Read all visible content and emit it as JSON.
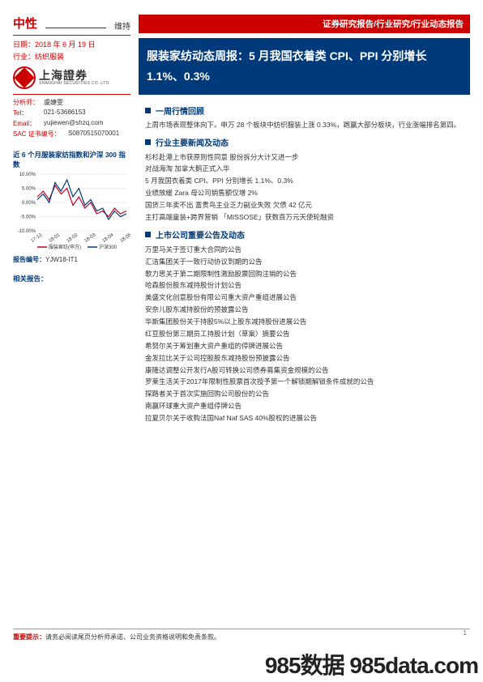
{
  "sidebar": {
    "rating": "中性",
    "maintain": "维持",
    "date_label": "日期：",
    "date": "2018 年 6 月 19 日",
    "industry_label": "行业：",
    "industry": "纺织服装",
    "logo_cn": "上海證券",
    "logo_en": "SHANGHAI SECURITIES CO.,LTD.",
    "analyst": {
      "name_label": "分析师：",
      "name": "虞婕雯",
      "tel_label": "Tel：",
      "tel": "021-53686153",
      "email_label": "Email：",
      "email": "yujiewen@shzq.com",
      "sac_label": "SAC 证书编号：",
      "sac": "S0870515070001"
    },
    "chart_title": "近 6 个月服装家纺指数和沪深 300 指数",
    "report_no_label": "报告编号：",
    "report_no": "YJW18-IT1",
    "related": "相关报告："
  },
  "header_bar": "证券研究报告/行业研究/行业动态报告",
  "title": "服装家纺动态周报：5 月我国衣着类 CPI、PPI 分别增长 1.1%、0.3%",
  "sections": [
    {
      "head": "一周行情回顾",
      "paras": [
        "上周市场表现整体向下。申万 28 个板块中纺织服装上涨 0.33%，跑赢大部分板块，行业涨幅排名第四。"
      ]
    },
    {
      "head": "行业主要新闻及动态",
      "items": [
        "杉杉赴港上市获原则性同意 股份拆分大计又进一步",
        "对战海淘 加拿大鹅正式入华",
        "5 月我国衣着类 CPI、PPI 分别增长 1.1%、0.3%",
        "业绩放缓 Zara 母公司销售额仅增 2%",
        "国货三年卖不出 富贵鸟主业乏力副业失败 欠债 42 亿元",
        "主打高端童装+跨界营销 「MISSOSE」获数百万元天使轮融资"
      ]
    },
    {
      "head": "上市公司重要公告及动态",
      "items": [
        "万里马关于签订重大合同的公告",
        "汇洁集团关于一致行动协议到期的公告",
        "歌力思关于第二期限制性激励股票回购注销的公告",
        "哈森股份股东减持股份计划公告",
        "美盛文化创意股份有限公司重大资产重组进展公告",
        "安奈儿股东减持股份的预披露公告",
        "华斯集团股份关于持股5%以上股东减持股份进展公告",
        "红豆股份第三期员工持股计划（草案）摘要公告",
        "希努尔关于筹划重大资产重组的停牌进展公告",
        "金发拉比关于公司控股股东减持股份预披露公告",
        "康隆达调整公开发行A股可转换公司债券募集资金规模的公告",
        "罗莱生活关于2017年限制性股票首次授予第一个解锁期解锁条件成就的公告",
        "探路者关于首次实施回购公司股份的公告",
        "南赢环球重大资产重组停牌公告",
        "拉夏贝尔关于收购法国Naf Naf SAS 40%股权的进展公告"
      ]
    }
  ],
  "chart": {
    "y_ticks": [
      "10.00%",
      "5.00%",
      "0.00%",
      "-5.00%",
      "-10.00%"
    ],
    "x_ticks": [
      "17-12",
      "18-01",
      "18-02",
      "18-03",
      "18-04",
      "18-05"
    ],
    "series": [
      {
        "name": "服装家纺(申万)",
        "color": "#c00020",
        "points": [
          [
            0,
            2
          ],
          [
            8,
            4
          ],
          [
            16,
            1
          ],
          [
            24,
            6
          ],
          [
            32,
            3
          ],
          [
            40,
            5
          ],
          [
            48,
            -1
          ],
          [
            56,
            2
          ],
          [
            64,
            -2
          ],
          [
            72,
            0
          ],
          [
            80,
            -4
          ],
          [
            88,
            -3
          ],
          [
            96,
            -5
          ],
          [
            104,
            -2
          ],
          [
            112,
            -4
          ],
          [
            120,
            -3
          ]
        ]
      },
      {
        "name": "沪深300",
        "color": "#003a7a",
        "points": [
          [
            0,
            1
          ],
          [
            8,
            3
          ],
          [
            16,
            0
          ],
          [
            24,
            7
          ],
          [
            32,
            4
          ],
          [
            40,
            8
          ],
          [
            48,
            2
          ],
          [
            56,
            5
          ],
          [
            64,
            -1
          ],
          [
            72,
            1
          ],
          [
            80,
            -3
          ],
          [
            88,
            -2
          ],
          [
            96,
            -6
          ],
          [
            104,
            -3
          ],
          [
            112,
            -5
          ],
          [
            120,
            -4
          ]
        ]
      }
    ],
    "ylim": [
      -10,
      10
    ],
    "bg": "#ffffff"
  },
  "disclaimer_label": "重要提示：",
  "disclaimer": "请务必阅读尾页分析师承诺、公司业务资格说明和免责条款。",
  "page_no": "1",
  "watermark": "985数据 985data.com"
}
